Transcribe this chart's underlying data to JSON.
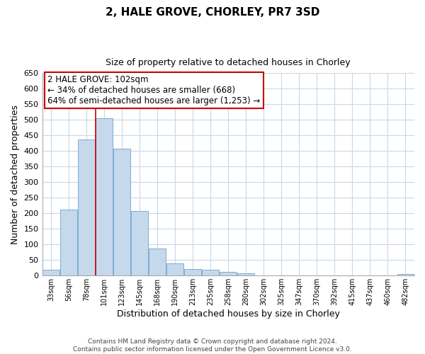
{
  "title": "2, HALE GROVE, CHORLEY, PR7 3SD",
  "subtitle": "Size of property relative to detached houses in Chorley",
  "xlabel": "Distribution of detached houses by size in Chorley",
  "ylabel": "Number of detached properties",
  "categories": [
    "33sqm",
    "56sqm",
    "78sqm",
    "101sqm",
    "123sqm",
    "145sqm",
    "168sqm",
    "190sqm",
    "213sqm",
    "235sqm",
    "258sqm",
    "280sqm",
    "302sqm",
    "325sqm",
    "347sqm",
    "370sqm",
    "392sqm",
    "415sqm",
    "437sqm",
    "460sqm",
    "482sqm"
  ],
  "values": [
    18,
    212,
    437,
    505,
    408,
    207,
    88,
    40,
    22,
    18,
    13,
    8,
    0,
    0,
    0,
    0,
    0,
    0,
    0,
    0,
    5
  ],
  "bar_color": "#c5d8ec",
  "bar_edge_color": "#7aafd4",
  "vline_x_index": 3,
  "vline_color": "#cc0000",
  "annotation_title": "2 HALE GROVE: 102sqm",
  "annotation_line1": "← 34% of detached houses are smaller (668)",
  "annotation_line2": "64% of semi-detached houses are larger (1,253) →",
  "annotation_box_color": "#ffffff",
  "annotation_box_edge_color": "#cc0000",
  "ylim": [
    0,
    650
  ],
  "yticks": [
    0,
    50,
    100,
    150,
    200,
    250,
    300,
    350,
    400,
    450,
    500,
    550,
    600,
    650
  ],
  "footer_line1": "Contains HM Land Registry data © Crown copyright and database right 2024.",
  "footer_line2": "Contains public sector information licensed under the Open Government Licence v3.0.",
  "background_color": "#ffffff",
  "grid_color": "#c8d8e8",
  "title_fontsize": 11,
  "subtitle_fontsize": 9,
  "xlabel_fontsize": 9,
  "ylabel_fontsize": 9,
  "annotation_fontsize": 8.5,
  "tick_fontsize": 8,
  "xtick_fontsize": 7,
  "footer_fontsize": 6.5
}
